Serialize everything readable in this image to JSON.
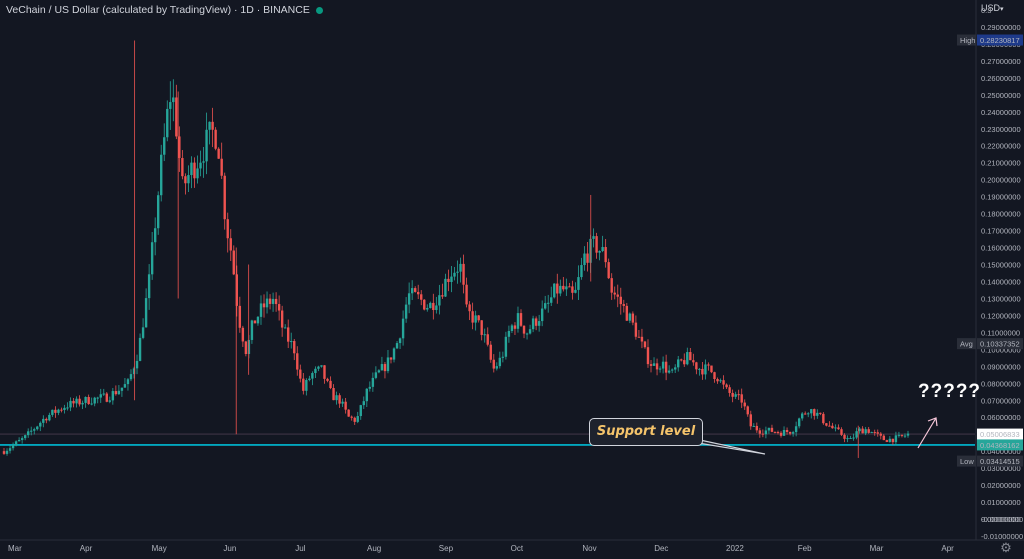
{
  "header": {
    "title": "VeChain / US Dollar (calculated by TradingView) · 1D · BINANCE"
  },
  "currency_label": "USD",
  "annotations": {
    "callout_text": "Support level",
    "question_text": "?????"
  },
  "colors": {
    "background": "#131722",
    "up_candle": "#26a69a",
    "down_candle": "#ef5350",
    "support_line": "#00bcd4",
    "high_label_bg": "#1e3a8a",
    "current_price_bg": "#26a69a",
    "arrow": "#f7c6d9"
  },
  "chart_data": {
    "type": "candlestick",
    "title": "VeChain / US Dollar (calculated by TradingView) · 1D · BINANCE",
    "x_tick_labels": [
      "Mar",
      "Apr",
      "May",
      "Jun",
      "Jul",
      "Aug",
      "Sep",
      "Oct",
      "Nov",
      "Dec",
      "2022",
      "Feb",
      "Mar",
      "Apr"
    ],
    "y_axis": {
      "ylim": [
        -0.01,
        0.3
      ],
      "tick_labels": [
        "0.29000000",
        "0.28000000",
        "0.27000000",
        "0.26000000",
        "0.25000000",
        "0.24000000",
        "0.23000000",
        "0.22000000",
        "0.21000000",
        "0.20000000",
        "0.19000000",
        "0.18000000",
        "0.17000000",
        "0.16000000",
        "0.15000000",
        "0.14000000",
        "0.13000000",
        "0.12000000",
        "0.11000000",
        "0.10000000",
        "0.09000000",
        "0.08000000",
        "0.07000000",
        "0.06000000",
        "0.05000000",
        "0.04000000",
        "0.03000000",
        "0.02000000",
        "0.01000000",
        "0.00000000",
        "-0.00000000",
        "-0.01000000"
      ],
      "top_label": "0.3"
    },
    "price_labels": [
      {
        "name": "High",
        "value": "0.28230817"
      },
      {
        "name": "Avg",
        "value": "0.10337352"
      },
      {
        "name": "",
        "value": "0.05006833"
      },
      {
        "name": "",
        "value": "0.04368162"
      },
      {
        "name": "Low",
        "value": "0.03414515"
      }
    ],
    "support_level": 0.04368162,
    "current_price": 0.05006833,
    "path": [
      [
        0,
        0.04
      ],
      [
        1,
        0.048
      ],
      [
        2,
        0.06
      ],
      [
        3,
        0.067
      ],
      [
        4,
        0.07
      ],
      [
        5,
        0.072
      ],
      [
        6,
        0.08
      ],
      [
        6.5,
        0.1
      ],
      [
        7,
        0.14
      ],
      [
        7.5,
        0.2
      ],
      [
        8,
        0.25
      ],
      [
        8.2,
        0.245
      ],
      [
        8.6,
        0.195
      ],
      [
        9,
        0.205
      ],
      [
        9.5,
        0.215
      ],
      [
        10,
        0.228
      ],
      [
        10.3,
        0.226
      ],
      [
        10.7,
        0.175
      ],
      [
        11,
        0.155
      ],
      [
        11.3,
        0.12
      ],
      [
        11.7,
        0.098
      ],
      [
        12,
        0.115
      ],
      [
        12.5,
        0.125
      ],
      [
        13,
        0.13
      ],
      [
        13.5,
        0.11
      ],
      [
        14,
        0.1
      ],
      [
        14.4,
        0.075
      ],
      [
        14.8,
        0.085
      ],
      [
        15.3,
        0.088
      ],
      [
        15.8,
        0.073
      ],
      [
        16.2,
        0.07
      ],
      [
        16.6,
        0.06
      ],
      [
        17,
        0.058
      ],
      [
        17.5,
        0.075
      ],
      [
        18,
        0.085
      ],
      [
        18.5,
        0.092
      ],
      [
        19,
        0.105
      ],
      [
        19.5,
        0.132
      ],
      [
        20,
        0.13
      ],
      [
        20.5,
        0.125
      ],
      [
        21,
        0.133
      ],
      [
        21.5,
        0.145
      ],
      [
        22,
        0.15
      ],
      [
        22.3,
        0.122
      ],
      [
        22.7,
        0.118
      ],
      [
        23.1,
        0.11
      ],
      [
        23.6,
        0.088
      ],
      [
        24,
        0.095
      ],
      [
        24.4,
        0.112
      ],
      [
        24.8,
        0.118
      ],
      [
        25.2,
        0.11
      ],
      [
        25.7,
        0.118
      ],
      [
        26.2,
        0.125
      ],
      [
        26.6,
        0.135
      ],
      [
        27,
        0.135
      ],
      [
        27.5,
        0.13
      ],
      [
        28,
        0.155
      ],
      [
        28.5,
        0.162
      ],
      [
        29,
        0.155
      ],
      [
        29.3,
        0.135
      ],
      [
        29.7,
        0.128
      ],
      [
        30.1,
        0.12
      ],
      [
        30.5,
        0.11
      ],
      [
        30.9,
        0.098
      ],
      [
        31.3,
        0.09
      ],
      [
        31.7,
        0.092
      ],
      [
        32.2,
        0.085
      ],
      [
        32.6,
        0.092
      ],
      [
        33,
        0.095
      ],
      [
        33.5,
        0.089
      ],
      [
        34,
        0.088
      ],
      [
        34.4,
        0.084
      ],
      [
        34.8,
        0.076
      ],
      [
        35.2,
        0.072
      ],
      [
        35.6,
        0.07
      ],
      [
        36,
        0.055
      ],
      [
        36.5,
        0.052
      ],
      [
        37,
        0.052
      ],
      [
        37.5,
        0.051
      ],
      [
        38,
        0.052
      ],
      [
        38.4,
        0.06
      ],
      [
        38.8,
        0.065
      ],
      [
        39.2,
        0.062
      ],
      [
        39.6,
        0.057
      ],
      [
        40,
        0.053
      ],
      [
        40.4,
        0.05
      ],
      [
        40.8,
        0.046
      ],
      [
        41.2,
        0.052
      ],
      [
        41.6,
        0.053
      ],
      [
        42,
        0.05
      ],
      [
        42.4,
        0.047
      ],
      [
        42.8,
        0.047
      ],
      [
        43.2,
        0.048
      ],
      [
        43.6,
        0.05
      ]
    ],
    "spikes": [
      {
        "x": 6.3,
        "high": 0.282,
        "low": 0.07
      },
      {
        "x": 8.4,
        "high": 0.252,
        "low": 0.13
      },
      {
        "x": 11.2,
        "high": 0.16,
        "low": 0.05
      },
      {
        "x": 11.8,
        "high": 0.15,
        "low": 0.085
      },
      {
        "x": 28.3,
        "high": 0.191,
        "low": 0.14
      },
      {
        "x": 41.2,
        "high": 0.055,
        "low": 0.036
      }
    ]
  }
}
